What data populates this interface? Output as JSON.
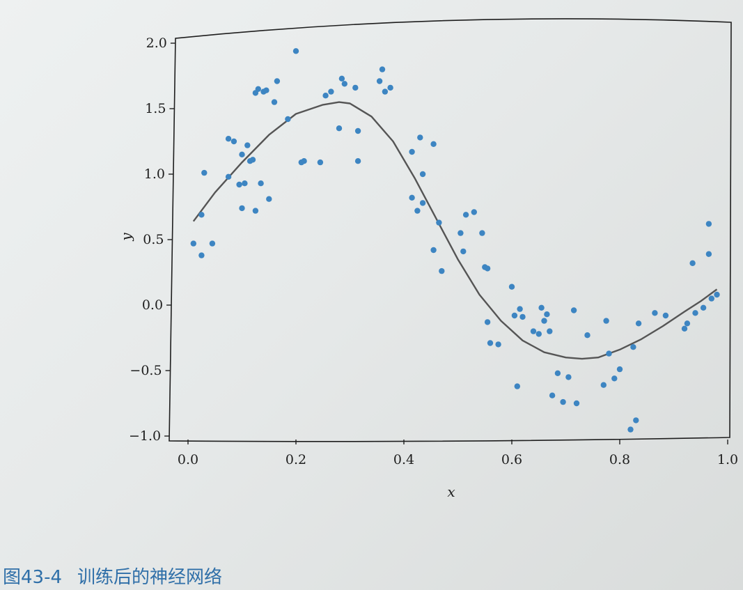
{
  "caption": {
    "number": "图43-4",
    "text": "训练后的神经网络"
  },
  "chart_data": {
    "type": "scatter",
    "title": "",
    "xlabel": "x",
    "ylabel": "y",
    "xlim": [
      -0.04,
      1.02
    ],
    "ylim": [
      -1.05,
      2.07
    ],
    "xticks": [
      "0.0",
      "0.2",
      "0.4",
      "0.6",
      "0.8",
      "1.0"
    ],
    "yticks": [
      "−1.0",
      "−0.5",
      "0.0",
      "0.5",
      "1.0",
      "1.5",
      "2.0"
    ],
    "grid": false,
    "colors": {
      "points": "#3d85c2",
      "curve": "#555555",
      "axes": "#1e1e1e"
    },
    "scatter_points": [
      [
        0.01,
        0.47
      ],
      [
        0.025,
        0.69
      ],
      [
        0.025,
        0.38
      ],
      [
        0.03,
        1.01
      ],
      [
        0.045,
        0.47
      ],
      [
        0.075,
        0.98
      ],
      [
        0.075,
        1.27
      ],
      [
        0.085,
        1.25
      ],
      [
        0.095,
        0.92
      ],
      [
        0.1,
        1.15
      ],
      [
        0.1,
        0.74
      ],
      [
        0.105,
        0.93
      ],
      [
        0.11,
        1.22
      ],
      [
        0.115,
        1.1
      ],
      [
        0.12,
        1.11
      ],
      [
        0.125,
        0.72
      ],
      [
        0.125,
        1.62
      ],
      [
        0.13,
        1.65
      ],
      [
        0.135,
        0.93
      ],
      [
        0.14,
        1.63
      ],
      [
        0.145,
        1.64
      ],
      [
        0.15,
        0.81
      ],
      [
        0.16,
        1.55
      ],
      [
        0.165,
        1.71
      ],
      [
        0.185,
        1.42
      ],
      [
        0.2,
        1.94
      ],
      [
        0.21,
        1.09
      ],
      [
        0.215,
        1.1
      ],
      [
        0.245,
        1.09
      ],
      [
        0.255,
        1.6
      ],
      [
        0.265,
        1.63
      ],
      [
        0.28,
        1.35
      ],
      [
        0.285,
        1.73
      ],
      [
        0.29,
        1.69
      ],
      [
        0.31,
        1.66
      ],
      [
        0.315,
        1.33
      ],
      [
        0.315,
        1.1
      ],
      [
        0.355,
        1.71
      ],
      [
        0.36,
        1.8
      ],
      [
        0.365,
        1.63
      ],
      [
        0.375,
        1.66
      ],
      [
        0.415,
        1.17
      ],
      [
        0.415,
        0.82
      ],
      [
        0.425,
        0.72
      ],
      [
        0.43,
        1.28
      ],
      [
        0.435,
        1.0
      ],
      [
        0.435,
        0.78
      ],
      [
        0.455,
        1.23
      ],
      [
        0.455,
        0.42
      ],
      [
        0.465,
        0.63
      ],
      [
        0.47,
        0.26
      ],
      [
        0.505,
        0.55
      ],
      [
        0.51,
        0.41
      ],
      [
        0.515,
        0.69
      ],
      [
        0.53,
        0.71
      ],
      [
        0.545,
        0.55
      ],
      [
        0.55,
        0.29
      ],
      [
        0.555,
        0.28
      ],
      [
        0.555,
        -0.13
      ],
      [
        0.56,
        -0.29
      ],
      [
        0.575,
        -0.3
      ],
      [
        0.6,
        0.14
      ],
      [
        0.605,
        -0.08
      ],
      [
        0.61,
        -0.62
      ],
      [
        0.615,
        -0.03
      ],
      [
        0.62,
        -0.09
      ],
      [
        0.64,
        -0.2
      ],
      [
        0.65,
        -0.22
      ],
      [
        0.655,
        -0.02
      ],
      [
        0.66,
        -0.12
      ],
      [
        0.665,
        -0.07
      ],
      [
        0.67,
        -0.2
      ],
      [
        0.675,
        -0.69
      ],
      [
        0.685,
        -0.52
      ],
      [
        0.695,
        -0.74
      ],
      [
        0.705,
        -0.55
      ],
      [
        0.715,
        -0.04
      ],
      [
        0.72,
        -0.75
      ],
      [
        0.74,
        -0.23
      ],
      [
        0.77,
        -0.61
      ],
      [
        0.775,
        -0.12
      ],
      [
        0.78,
        -0.37
      ],
      [
        0.79,
        -0.56
      ],
      [
        0.8,
        -0.49
      ],
      [
        0.82,
        -0.95
      ],
      [
        0.825,
        -0.32
      ],
      [
        0.83,
        -0.88
      ],
      [
        0.835,
        -0.14
      ],
      [
        0.865,
        -0.06
      ],
      [
        0.885,
        -0.08
      ],
      [
        0.92,
        -0.18
      ],
      [
        0.925,
        -0.14
      ],
      [
        0.935,
        0.32
      ],
      [
        0.94,
        -0.06
      ],
      [
        0.955,
        -0.02
      ],
      [
        0.965,
        0.62
      ],
      [
        0.965,
        0.39
      ],
      [
        0.97,
        0.05
      ],
      [
        0.98,
        0.08
      ]
    ],
    "curve_points": [
      [
        0.01,
        0.64
      ],
      [
        0.05,
        0.86
      ],
      [
        0.1,
        1.09
      ],
      [
        0.15,
        1.3
      ],
      [
        0.2,
        1.46
      ],
      [
        0.25,
        1.53
      ],
      [
        0.28,
        1.55
      ],
      [
        0.3,
        1.54
      ],
      [
        0.34,
        1.44
      ],
      [
        0.38,
        1.25
      ],
      [
        0.42,
        0.97
      ],
      [
        0.46,
        0.66
      ],
      [
        0.5,
        0.35
      ],
      [
        0.54,
        0.08
      ],
      [
        0.58,
        -0.12
      ],
      [
        0.62,
        -0.27
      ],
      [
        0.66,
        -0.36
      ],
      [
        0.7,
        -0.4
      ],
      [
        0.73,
        -0.41
      ],
      [
        0.76,
        -0.4
      ],
      [
        0.8,
        -0.34
      ],
      [
        0.84,
        -0.26
      ],
      [
        0.88,
        -0.16
      ],
      [
        0.92,
        -0.05
      ],
      [
        0.95,
        0.03
      ],
      [
        0.98,
        0.12
      ]
    ]
  }
}
